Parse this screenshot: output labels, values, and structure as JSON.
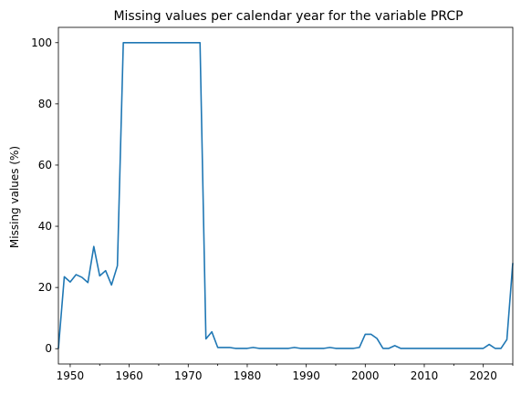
{
  "chart_data": {
    "type": "line",
    "title": "Missing values per calendar year for the variable PRCP",
    "xlabel": "",
    "ylabel": "Missing values (%)",
    "xlim": [
      1948,
      2025
    ],
    "ylim": [
      -5,
      105
    ],
    "x_ticks": [
      1950,
      1960,
      1970,
      1980,
      1990,
      2000,
      2010,
      2020
    ],
    "x_tick_labels": [
      "1950",
      "1960",
      "1970",
      "1980",
      "1990",
      "2000",
      "2010",
      "2020"
    ],
    "y_ticks": [
      0,
      20,
      40,
      60,
      80,
      100
    ],
    "y_tick_labels": [
      "0",
      "20",
      "40",
      "60",
      "80",
      "100"
    ],
    "grid": false,
    "series": [
      {
        "color": "#1f77b4",
        "x": [
          1948,
          1949,
          1950,
          1951,
          1952,
          1953,
          1954,
          1955,
          1956,
          1957,
          1958,
          1959,
          1960,
          1961,
          1962,
          1963,
          1964,
          1965,
          1966,
          1967,
          1968,
          1969,
          1970,
          1971,
          1972,
          1973,
          1974,
          1975,
          1976,
          1977,
          1978,
          1979,
          1980,
          1981,
          1982,
          1983,
          1984,
          1985,
          1986,
          1987,
          1988,
          1989,
          1990,
          1991,
          1992,
          1993,
          1994,
          1995,
          1996,
          1997,
          1998,
          1999,
          2000,
          2001,
          2002,
          2003,
          2004,
          2005,
          2006,
          2007,
          2008,
          2009,
          2010,
          2011,
          2012,
          2013,
          2014,
          2015,
          2016,
          2017,
          2018,
          2019,
          2020,
          2021,
          2022,
          2023,
          2024,
          2025
        ],
        "y": [
          0,
          23.5,
          21.8,
          24.2,
          23.3,
          21.6,
          33.4,
          23.8,
          25.5,
          20.8,
          27.1,
          100,
          100,
          100,
          100,
          100,
          100,
          100,
          100,
          100,
          100,
          100,
          100,
          100,
          100,
          3.2,
          5.5,
          0.4,
          0.4,
          0.4,
          0.1,
          0.1,
          0.1,
          0.4,
          0.1,
          0.1,
          0.1,
          0.1,
          0.1,
          0.1,
          0.4,
          0.1,
          0.1,
          0.1,
          0.1,
          0.1,
          0.4,
          0.1,
          0.1,
          0.1,
          0.1,
          0.4,
          4.7,
          4.7,
          3.3,
          0.1,
          0.1,
          1.0,
          0.1,
          0.1,
          0.1,
          0.1,
          0.1,
          0.1,
          0.1,
          0.1,
          0.1,
          0.1,
          0.1,
          0.1,
          0.1,
          0.1,
          0.1,
          1.4,
          0.1,
          0.1,
          3.0,
          28.0
        ]
      }
    ]
  }
}
